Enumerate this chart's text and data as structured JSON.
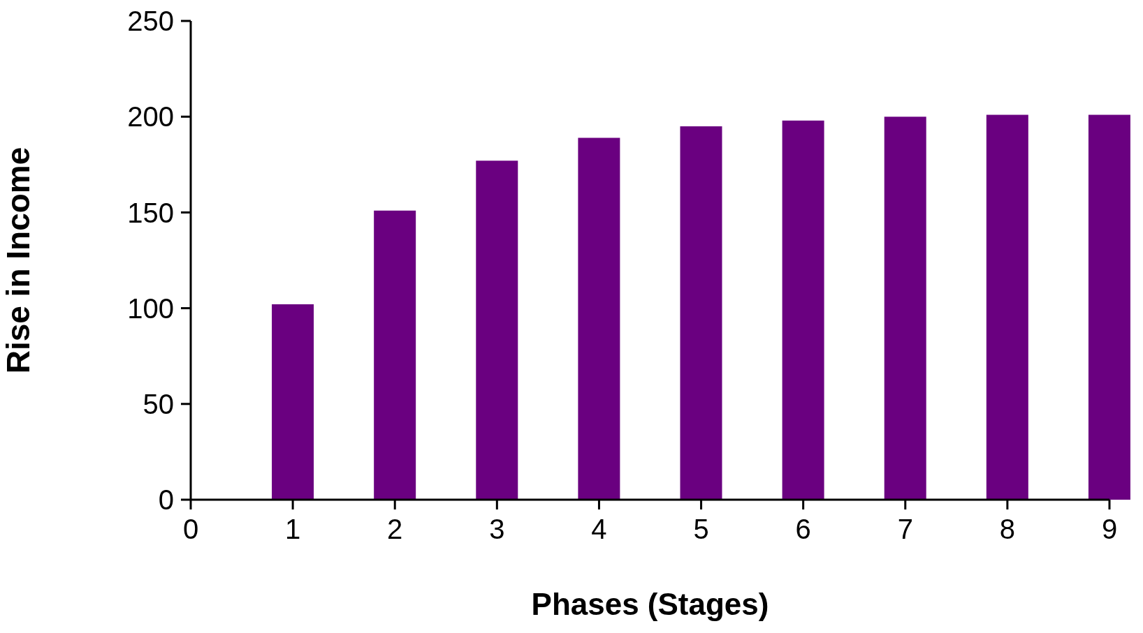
{
  "chart_data": {
    "type": "bar",
    "xlabel": "Phases (Stages)",
    "ylabel": "Rise in Income",
    "x": [
      1,
      2,
      3,
      4,
      5,
      6,
      7,
      8,
      9
    ],
    "values": [
      102,
      151,
      177,
      189,
      195,
      198,
      200,
      201,
      201
    ],
    "color": "#6a0080",
    "xlim": [
      0,
      9
    ],
    "xticks": [
      0,
      1,
      2,
      3,
      4,
      5,
      6,
      7,
      8,
      9
    ],
    "ylim": [
      0,
      250
    ],
    "yticks": [
      0,
      50,
      100,
      150,
      200,
      250
    ],
    "grid": false,
    "legend": false
  }
}
